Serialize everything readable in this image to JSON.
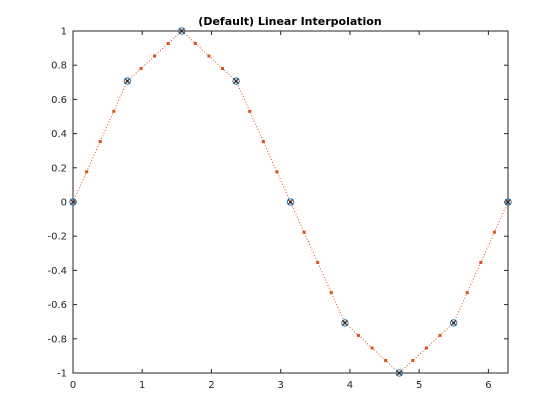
{
  "chart_data": {
    "type": "line",
    "title": "(Default) Linear Interpolation",
    "xlabel": "",
    "ylabel": "",
    "xlim": [
      0,
      6.2832
    ],
    "ylim": [
      -1,
      1
    ],
    "grid": false,
    "legend": "none",
    "x_ticks": [
      0,
      1,
      2,
      3,
      4,
      5,
      6
    ],
    "x_tick_labels": [
      "0",
      "1",
      "2",
      "3",
      "4",
      "5",
      "6"
    ],
    "y_ticks": [
      1,
      0.8,
      0.6,
      0.4,
      0.2,
      0,
      -0.2,
      -0.4,
      -0.6,
      -0.8,
      -1
    ],
    "y_tick_labels": [
      "1",
      "0.8",
      "0.6",
      "0.4",
      "0.2",
      "0",
      "-0.2",
      "-0.4",
      "-0.6",
      "-0.8",
      "-1"
    ],
    "series": [
      {
        "style": "markers-o-x",
        "color": "#0072BD",
        "x": [
          0,
          0.7854,
          1.5708,
          2.3562,
          3.1416,
          3.927,
          4.7124,
          5.4978,
          6.2832
        ],
        "y": [
          0,
          0.7071,
          1,
          0.7071,
          0,
          -0.7071,
          -1,
          -0.7071,
          0
        ]
      },
      {
        "style": "dotted-line-with-dot-markers",
        "color": "#D95319",
        "x": [
          0,
          0.1963,
          0.3927,
          0.589,
          0.7854,
          0.9817,
          1.1781,
          1.3744,
          1.5708,
          1.7671,
          1.9635,
          2.1598,
          2.3562,
          2.5525,
          2.7489,
          2.9452,
          3.1416,
          3.3379,
          3.5343,
          3.7306,
          3.927,
          4.1233,
          4.3197,
          4.516,
          4.7124,
          4.9087,
          5.1051,
          5.3014,
          5.4978,
          5.6941,
          5.8905,
          6.0868,
          6.2832
        ],
        "y": [
          0,
          0.1768,
          0.3536,
          0.5303,
          0.7071,
          0.7803,
          0.8536,
          0.9268,
          1,
          0.9268,
          0.8536,
          0.7803,
          0.7071,
          0.5303,
          0.3536,
          0.1768,
          0,
          -0.1768,
          -0.3536,
          -0.5303,
          -0.7071,
          -0.7803,
          -0.8536,
          -0.9268,
          -1,
          -0.9268,
          -0.8536,
          -0.7803,
          -0.7071,
          -0.5303,
          -0.3536,
          -0.1768,
          0
        ]
      }
    ]
  }
}
